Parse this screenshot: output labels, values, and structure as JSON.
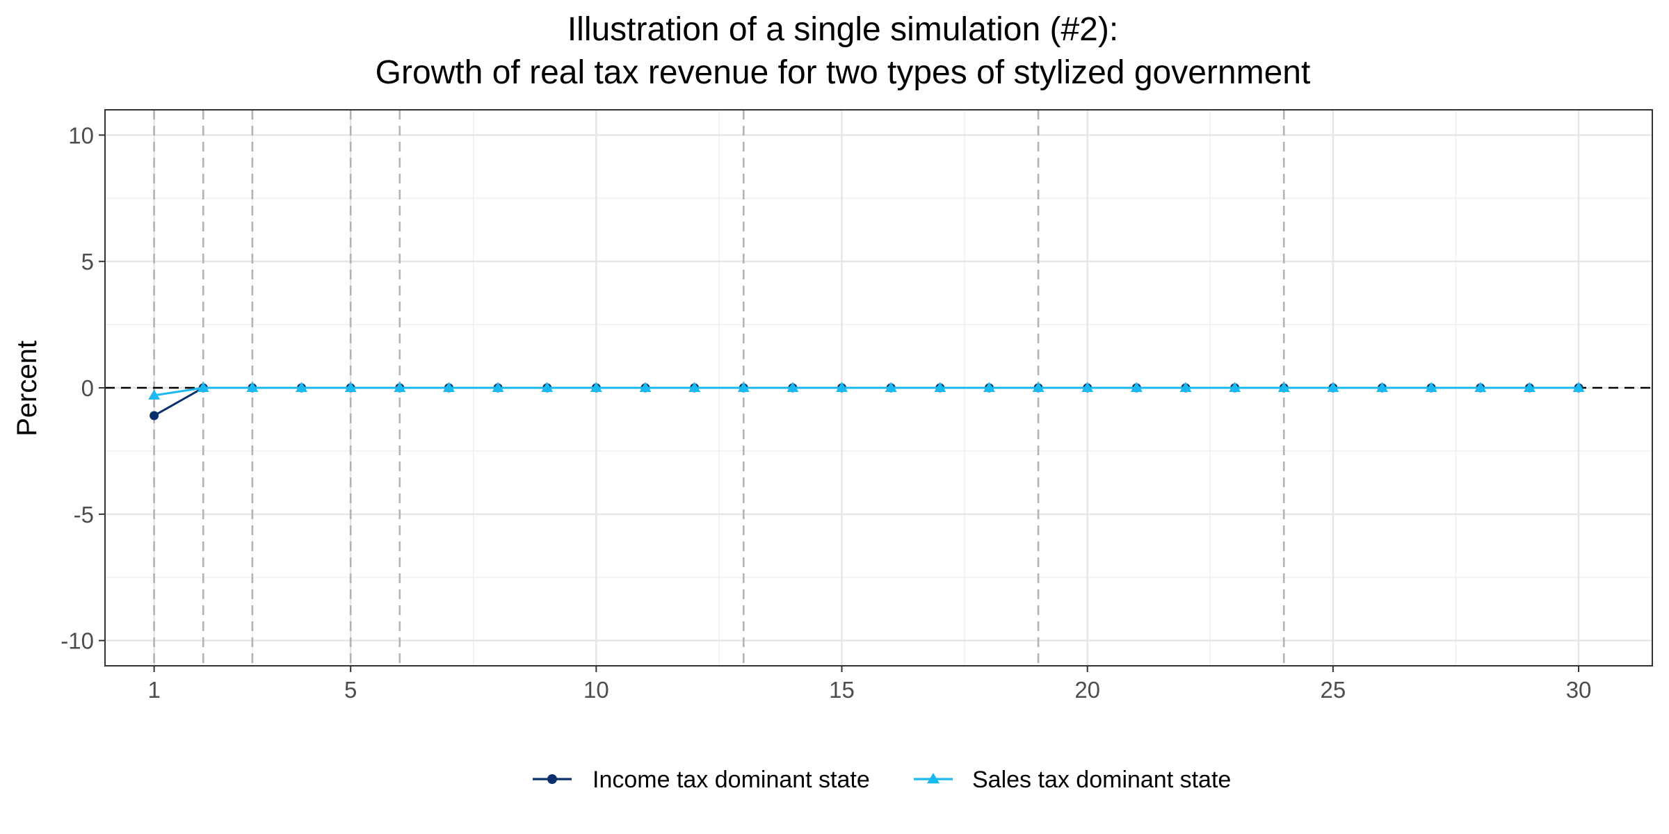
{
  "chart_data": {
    "type": "line",
    "title": [
      "Illustration of a single simulation (#2):",
      "Growth of real tax revenue for two types of stylized government"
    ],
    "xlabel": "",
    "ylabel": "Percent",
    "xlim": [
      0,
      31.5
    ],
    "ylim": [
      -11,
      11
    ],
    "x_ticks": [
      1,
      5,
      10,
      15,
      20,
      25,
      30
    ],
    "y_ticks": [
      -10,
      -5,
      0,
      5,
      10
    ],
    "y_tick_labels": [
      "-10",
      "-5",
      "0",
      "5",
      "10"
    ],
    "grid": true,
    "legend_position": "bottom",
    "reference_hline": 0,
    "event_vlines": [
      1,
      2,
      3,
      5,
      6,
      13,
      19,
      24
    ],
    "x": [
      1,
      2,
      3,
      4,
      5,
      6,
      7,
      8,
      9,
      10,
      11,
      12,
      13,
      14,
      15,
      16,
      17,
      18,
      19,
      20,
      21,
      22,
      23,
      24,
      25,
      26,
      27,
      28,
      29,
      30
    ],
    "series": [
      {
        "name": "Income tax dominant state",
        "color": "#08306b",
        "marker": "circle",
        "values": [
          -1.1,
          0,
          0,
          0,
          0,
          0,
          0,
          0,
          0,
          0,
          0,
          0,
          0,
          0,
          0,
          0,
          0,
          0,
          0,
          0,
          0,
          0,
          0,
          0,
          0,
          0,
          0,
          0,
          0,
          0
        ]
      },
      {
        "name": "Sales tax dominant state",
        "color": "#1ab9f0",
        "marker": "triangle",
        "values": [
          -0.3,
          0,
          0,
          0,
          0,
          0,
          0,
          0,
          0,
          0,
          0,
          0,
          0,
          0,
          0,
          0,
          0,
          0,
          0,
          0,
          0,
          0,
          0,
          0,
          0,
          0,
          0,
          0,
          0,
          0
        ]
      }
    ]
  }
}
